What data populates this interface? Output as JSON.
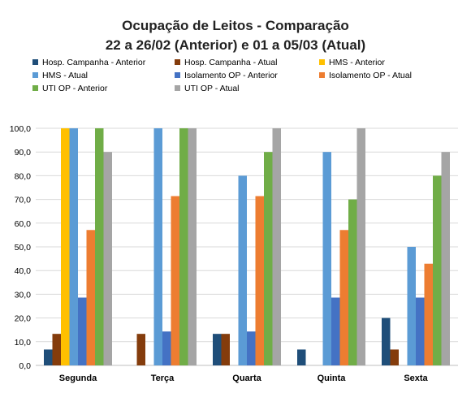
{
  "chart_data": {
    "type": "bar",
    "title_line1": "Ocupação de Leitos - Comparação",
    "title_line2": "22 a 26/02 (Anterior) e 01 a 05/03 (Atual)",
    "categories": [
      "Segunda",
      "Terça",
      "Quarta",
      "Quinta",
      "Sexta"
    ],
    "ylim": [
      0,
      100
    ],
    "yticks": [
      "0,0",
      "10,0",
      "20,0",
      "30,0",
      "40,0",
      "50,0",
      "60,0",
      "70,0",
      "80,0",
      "90,0",
      "100,0"
    ],
    "grid": true,
    "legend_placement": "top",
    "series": [
      {
        "name": "Hosp. Campanha - Anterior",
        "color": "#1f4e79",
        "values": [
          6.7,
          0,
          13.3,
          6.7,
          20
        ]
      },
      {
        "name": "Hosp. Campanha - Atual",
        "color": "#843c0c",
        "values": [
          13.3,
          13.3,
          13.3,
          0,
          6.7
        ]
      },
      {
        "name": "HMS - Anterior",
        "color": "#ffc000",
        "values": [
          100,
          0,
          0,
          0,
          0
        ]
      },
      {
        "name": "HMS - Atual",
        "color": "#5b9bd5",
        "values": [
          100,
          100,
          80,
          90,
          50
        ]
      },
      {
        "name": "Isolamento OP - Anterior",
        "color": "#4472c4",
        "values": [
          28.6,
          14.3,
          14.3,
          28.6,
          28.6
        ]
      },
      {
        "name": "Isolamento OP - Atual",
        "color": "#ed7d31",
        "values": [
          57.1,
          71.4,
          71.4,
          57.1,
          42.9
        ]
      },
      {
        "name": "UTI OP - Anterior",
        "color": "#70ad47",
        "values": [
          100,
          100,
          90,
          70,
          80
        ]
      },
      {
        "name": "UTI OP - Atual",
        "color": "#a5a5a5",
        "values": [
          90,
          100,
          100,
          100,
          90
        ]
      }
    ]
  }
}
